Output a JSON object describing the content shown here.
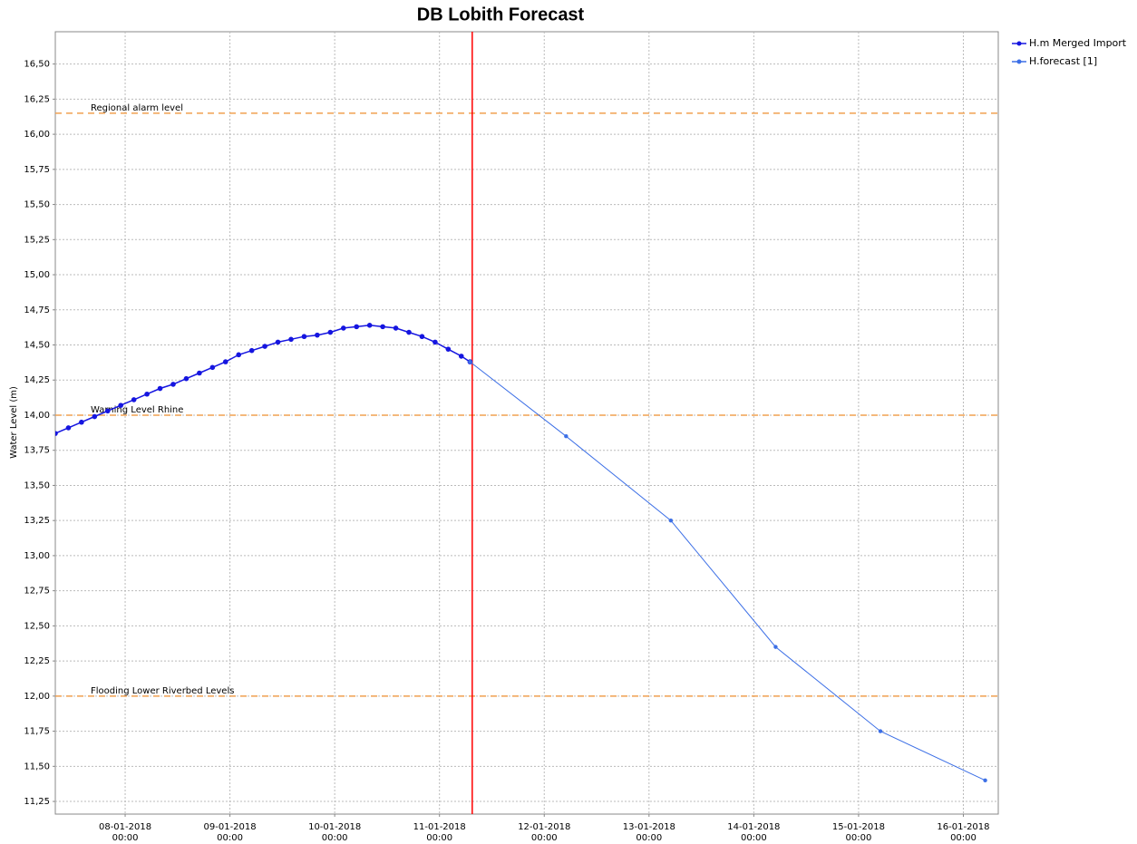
{
  "chart_data": {
    "type": "line",
    "title": "DB Lobith Forecast",
    "y_label": "Water Level (m)",
    "xlim": [
      "07-01-2018 08:00",
      "16-01-2018 08:00"
    ],
    "xticks": [
      "08-01-2018 00:00",
      "09-01-2018 00:00",
      "10-01-2018 00:00",
      "11-01-2018 00:00",
      "12-01-2018 00:00",
      "13-01-2018 00:00",
      "14-01-2018 00:00",
      "15-01-2018 00:00",
      "16-01-2018 00:00"
    ],
    "ylim": [
      11.16,
      16.73
    ],
    "yticks": [
      {
        "value": 11.25,
        "label": "11,25"
      },
      {
        "value": 11.5,
        "label": "11,50"
      },
      {
        "value": 11.75,
        "label": "11,75"
      },
      {
        "value": 12,
        "label": "12,00"
      },
      {
        "value": 12.25,
        "label": "12,25"
      },
      {
        "value": 12.5,
        "label": "12,50"
      },
      {
        "value": 12.75,
        "label": "12,75"
      },
      {
        "value": 13,
        "label": "13,00"
      },
      {
        "value": 13.25,
        "label": "13,25"
      },
      {
        "value": 13.5,
        "label": "13,50"
      },
      {
        "value": 13.75,
        "label": "13,75"
      },
      {
        "value": 14,
        "label": "14,00"
      },
      {
        "value": 14.25,
        "label": "14,25"
      },
      {
        "value": 14.5,
        "label": "14,50"
      },
      {
        "value": 14.75,
        "label": "14,75"
      },
      {
        "value": 15,
        "label": "15,00"
      },
      {
        "value": 15.25,
        "label": "15,25"
      },
      {
        "value": 15.5,
        "label": "15,50"
      },
      {
        "value": 15.75,
        "label": "15,75"
      },
      {
        "value": 16,
        "label": "16,00"
      },
      {
        "value": 16.25,
        "label": "16,25"
      },
      {
        "value": 16.5,
        "label": "16,50"
      }
    ],
    "grid": true,
    "legend": "right",
    "series": [
      {
        "name": "H.m Merged Import",
        "color": "#1515e0",
        "x": [
          "07-01-2018 08:00",
          "07-01-2018 11:00",
          "07-01-2018 14:00",
          "07-01-2018 17:00",
          "07-01-2018 20:00",
          "07-01-2018 23:00",
          "08-01-2018 02:00",
          "08-01-2018 05:00",
          "08-01-2018 08:00",
          "08-01-2018 11:00",
          "08-01-2018 14:00",
          "08-01-2018 17:00",
          "08-01-2018 20:00",
          "08-01-2018 23:00",
          "09-01-2018 02:00",
          "09-01-2018 05:00",
          "09-01-2018 08:00",
          "09-01-2018 11:00",
          "09-01-2018 14:00",
          "09-01-2018 17:00",
          "09-01-2018 20:00",
          "09-01-2018 23:00",
          "10-01-2018 02:00",
          "10-01-2018 05:00",
          "10-01-2018 08:00",
          "10-01-2018 11:00",
          "10-01-2018 14:00",
          "10-01-2018 17:00",
          "10-01-2018 20:00",
          "10-01-2018 23:00",
          "11-01-2018 02:00",
          "11-01-2018 05:00",
          "11-01-2018 07:00"
        ],
        "values": [
          13.87,
          13.91,
          13.95,
          13.99,
          14.03,
          14.07,
          14.11,
          14.15,
          14.19,
          14.22,
          14.26,
          14.3,
          14.34,
          14.38,
          14.43,
          14.46,
          14.49,
          14.52,
          14.54,
          14.56,
          14.57,
          14.59,
          14.62,
          14.63,
          14.64,
          14.63,
          14.62,
          14.59,
          14.56,
          14.52,
          14.47,
          14.42,
          14.38
        ]
      },
      {
        "name": "H.forecast [1]",
        "color": "#3c6fe6",
        "x": [
          "11-01-2018 07:00",
          "12-01-2018 05:00",
          "13-01-2018 05:00",
          "14-01-2018 05:00",
          "15-01-2018 05:00",
          "16-01-2018 05:00"
        ],
        "values": [
          14.38,
          13.85,
          13.25,
          12.35,
          11.75,
          11.4
        ]
      }
    ],
    "thresholds": [
      {
        "label": "Regional alarm level",
        "value": 16.15,
        "color": "#f0a050"
      },
      {
        "label": "Warning Level Rhine",
        "value": 14.0,
        "color": "#f0a050"
      },
      {
        "label": "Flooding Lower Riverbed Levels",
        "value": 12.0,
        "color": "#f0a050"
      }
    ],
    "marker": {
      "x": "11-01-2018 07:30",
      "color": "#ff0000"
    }
  }
}
